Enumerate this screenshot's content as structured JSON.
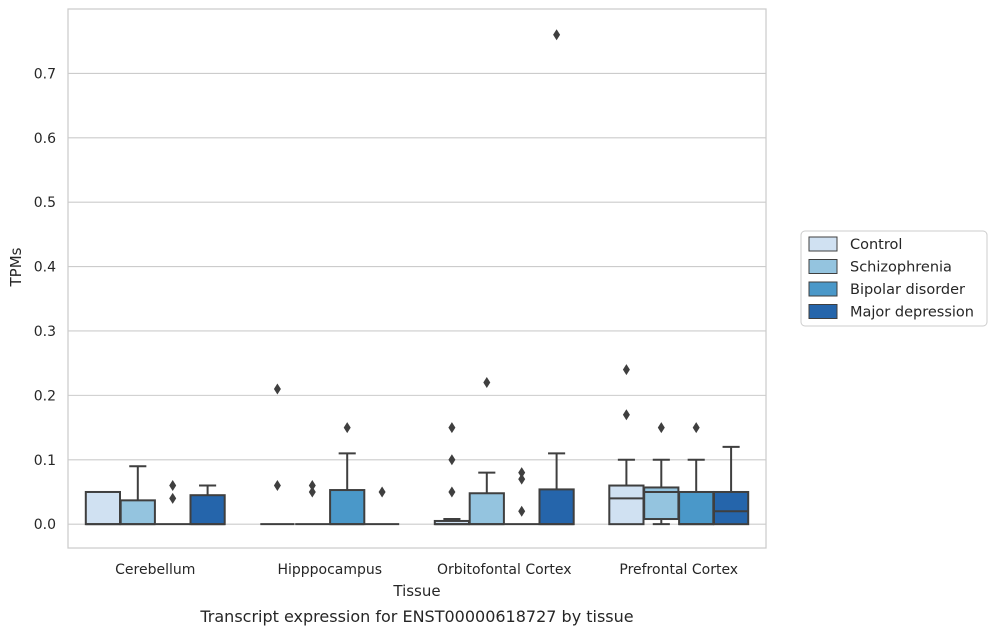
{
  "chart_data": {
    "type": "box",
    "xlabel": "Tissue",
    "ylabel": "TPMs",
    "caption": "Transcript expression for ENST00000618727 by tissue",
    "ylim": [
      -0.037,
      0.8
    ],
    "yticks": [
      0.0,
      0.1,
      0.2,
      0.3,
      0.4,
      0.5,
      0.6,
      0.7
    ],
    "ytick_labels": [
      "0.0",
      "0.1",
      "0.2",
      "0.3",
      "0.4",
      "0.5",
      "0.6",
      "0.7"
    ],
    "grid": "horizontal",
    "legend_position": "outside-right",
    "categories": [
      "Cerebellum",
      "Hipppocampus",
      "Orbitofontal Cortex",
      "Prefrontal Cortex"
    ],
    "series": [
      {
        "name": "Control",
        "color": "#d0e1f2",
        "boxes": [
          {
            "q1": 0.0,
            "median": 0.0,
            "q3": 0.05,
            "whisker_low": 0.0,
            "whisker_high": 0.05,
            "outliers": []
          },
          {
            "q1": 0.0,
            "median": 0.0,
            "q3": 0.0,
            "whisker_low": 0.0,
            "whisker_high": 0.0,
            "outliers": [
              0.21,
              0.06
            ]
          },
          {
            "q1": 0.0,
            "median": 0.0,
            "q3": 0.005,
            "whisker_low": 0.0,
            "whisker_high": 0.008,
            "outliers": [
              0.15,
              0.1,
              0.05
            ]
          },
          {
            "q1": 0.0,
            "median": 0.04,
            "q3": 0.06,
            "whisker_low": 0.0,
            "whisker_high": 0.1,
            "outliers": [
              0.24,
              0.17
            ]
          }
        ]
      },
      {
        "name": "Schizophrenia",
        "color": "#94c4df",
        "boxes": [
          {
            "q1": 0.0,
            "median": 0.0,
            "q3": 0.037,
            "whisker_low": 0.0,
            "whisker_high": 0.09,
            "outliers": []
          },
          {
            "q1": 0.0,
            "median": 0.0,
            "q3": 0.0,
            "whisker_low": 0.0,
            "whisker_high": 0.0,
            "outliers": [
              0.06,
              0.05
            ]
          },
          {
            "q1": 0.0,
            "median": 0.0,
            "q3": 0.048,
            "whisker_low": 0.0,
            "whisker_high": 0.08,
            "outliers": [
              0.22
            ]
          },
          {
            "q1": 0.008,
            "median": 0.05,
            "q3": 0.057,
            "whisker_low": 0.0,
            "whisker_high": 0.1,
            "outliers": [
              0.15
            ]
          }
        ]
      },
      {
        "name": "Bipolar disorder",
        "color": "#4a98c9",
        "boxes": [
          {
            "q1": 0.0,
            "median": 0.0,
            "q3": 0.0,
            "whisker_low": 0.0,
            "whisker_high": 0.0,
            "outliers": [
              0.06,
              0.04
            ]
          },
          {
            "q1": 0.0,
            "median": 0.0,
            "q3": 0.053,
            "whisker_low": 0.0,
            "whisker_high": 0.11,
            "outliers": [
              0.15
            ]
          },
          {
            "q1": 0.0,
            "median": 0.0,
            "q3": 0.0,
            "whisker_low": 0.0,
            "whisker_high": 0.0,
            "outliers": [
              0.08,
              0.07,
              0.02
            ]
          },
          {
            "q1": 0.0,
            "median": 0.0,
            "q3": 0.05,
            "whisker_low": 0.0,
            "whisker_high": 0.1,
            "outliers": [
              0.15
            ]
          }
        ]
      },
      {
        "name": "Major depression",
        "color": "#2565ab",
        "boxes": [
          {
            "q1": 0.0,
            "median": 0.0,
            "q3": 0.045,
            "whisker_low": 0.0,
            "whisker_high": 0.06,
            "outliers": []
          },
          {
            "q1": 0.0,
            "median": 0.0,
            "q3": 0.0,
            "whisker_low": 0.0,
            "whisker_high": 0.0,
            "outliers": [
              0.05
            ]
          },
          {
            "q1": 0.0,
            "median": 0.0,
            "q3": 0.054,
            "whisker_low": 0.0,
            "whisker_high": 0.11,
            "outliers": [
              0.76
            ]
          },
          {
            "q1": 0.0,
            "median": 0.02,
            "q3": 0.05,
            "whisker_low": 0.0,
            "whisker_high": 0.12,
            "outliers": []
          }
        ]
      }
    ]
  }
}
